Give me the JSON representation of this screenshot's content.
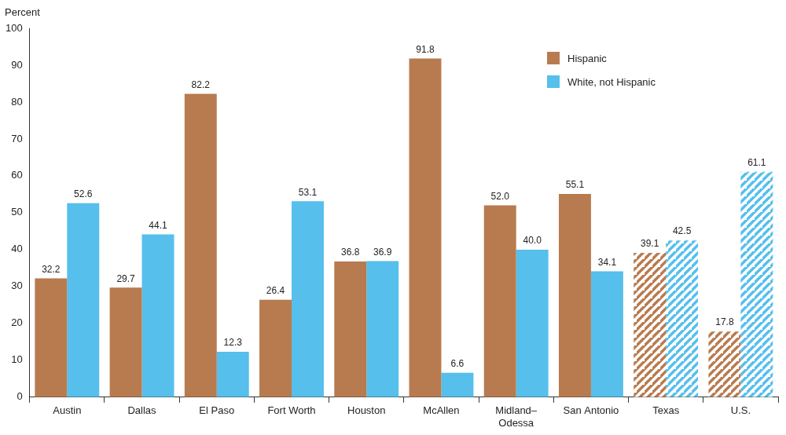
{
  "chart_data": {
    "type": "bar",
    "ylabel": "Percent",
    "categories": [
      "Austin",
      "Dallas",
      "El Paso",
      "Fort Worth",
      "Houston",
      "McAllen",
      "Midland–Odessa",
      "San Antonio",
      "Texas",
      "U.S."
    ],
    "series": [
      {
        "name": "Hispanic",
        "color": "#b87b4f",
        "values": [
          32.2,
          29.7,
          82.2,
          26.4,
          36.8,
          91.8,
          52.0,
          55.1,
          39.1,
          17.8
        ],
        "value_labels": [
          "32.2",
          "29.7",
          "82.2",
          "26.4",
          "36.8",
          "91.8",
          "52.0",
          "55.1",
          "39.1",
          "17.8"
        ]
      },
      {
        "name": "White, not Hispanic",
        "color": "#56bfec",
        "values": [
          52.6,
          44.1,
          12.3,
          53.1,
          36.9,
          6.6,
          40.0,
          34.1,
          42.5,
          61.1
        ],
        "value_labels": [
          "52.6",
          "44.1",
          "12.3",
          "53.1",
          "36.9",
          "6.6",
          "40.0",
          "34.1",
          "42.5",
          "61.1"
        ]
      }
    ],
    "ylim": [
      0,
      100
    ],
    "yticks": [
      0,
      10,
      20,
      30,
      40,
      50,
      60,
      70,
      80,
      90,
      100
    ],
    "grid": false,
    "legend": "upper right",
    "data_labels": true
  }
}
